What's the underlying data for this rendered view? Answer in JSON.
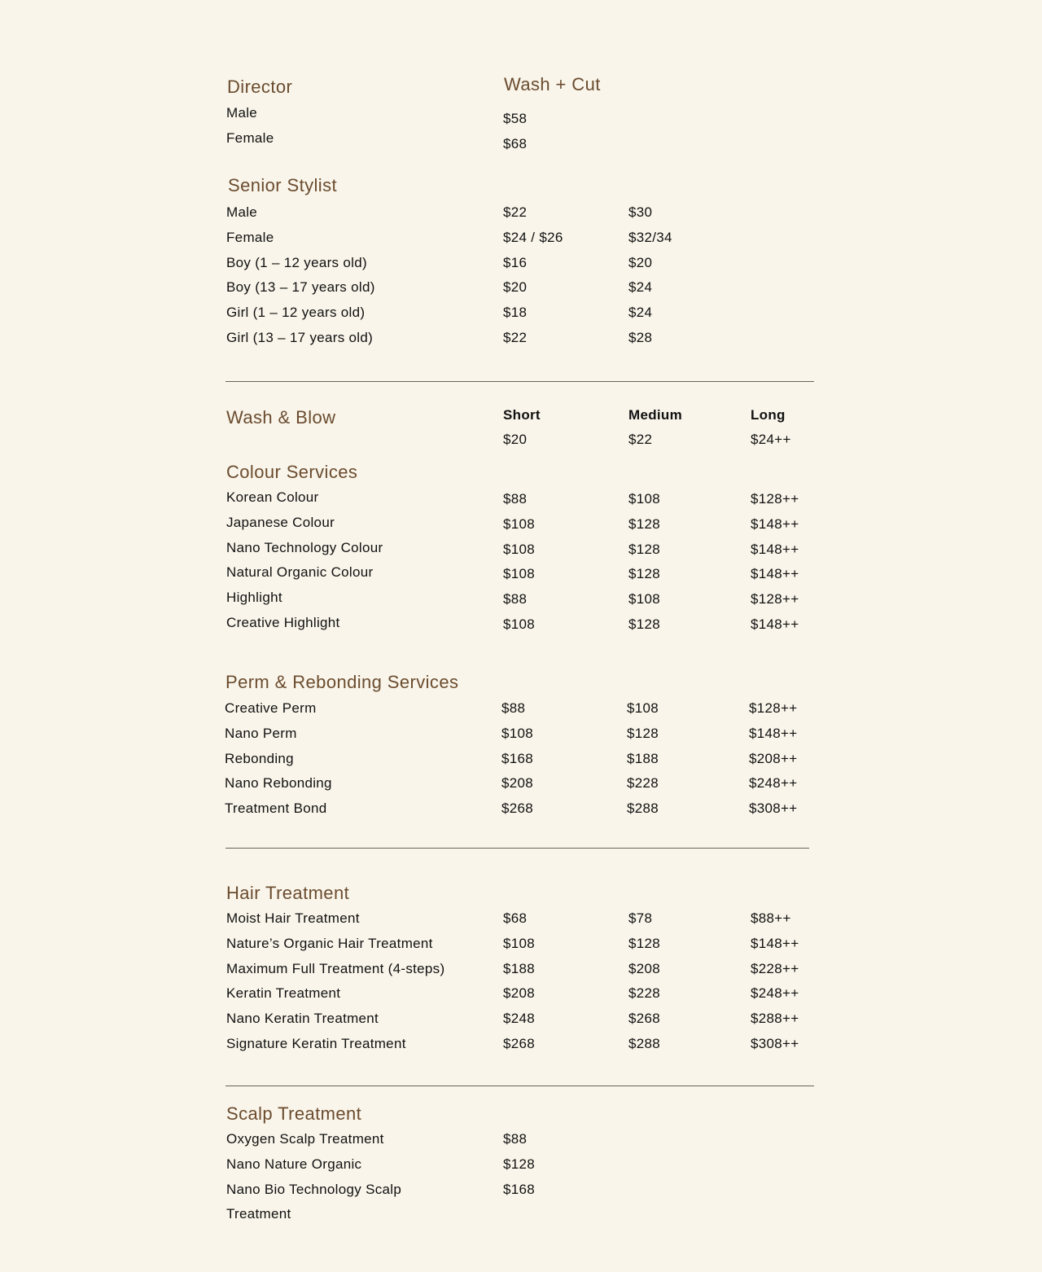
{
  "colors": {
    "background": "#f9f5ea",
    "heading": "#6b4c2f",
    "text": "#111111",
    "divider": "#6b6258"
  },
  "director": {
    "title": "Director",
    "column_header": "Wash + Cut",
    "rows": [
      [
        "Male",
        "$58"
      ],
      [
        "Female",
        "$68"
      ]
    ]
  },
  "senior_stylist": {
    "title": "Senior Stylist",
    "rows": [
      [
        "Male",
        "$22",
        "$30"
      ],
      [
        "Female",
        "$24 / $26",
        "$32/34"
      ],
      [
        "Boy (1 – 12 years old)",
        "$16",
        "$20"
      ],
      [
        "Boy (13 – 17 years old)",
        "$20",
        "$24"
      ],
      [
        "Girl (1 – 12 years old)",
        "$18",
        "$24"
      ],
      [
        "Girl (13 – 17 years old)",
        "$22",
        "$28"
      ]
    ]
  },
  "wash_blow": {
    "title": "Wash & Blow",
    "headers": [
      "Short",
      "Medium",
      "Long"
    ],
    "prices": [
      "$20",
      "$22",
      "$24++"
    ]
  },
  "colour": {
    "title": "Colour Services",
    "rows": [
      [
        "Korean Colour",
        "$88",
        "$108",
        "$128++"
      ],
      [
        "Japanese Colour",
        "$108",
        "$128",
        "$148++"
      ],
      [
        "Nano Technology Colour",
        "$108",
        "$128",
        "$148++"
      ],
      [
        "Natural Organic Colour",
        "$108",
        "$128",
        "$148++"
      ],
      [
        "Highlight",
        "$88",
        "$108",
        "$128++"
      ],
      [
        "Creative Highlight",
        "$108",
        "$128",
        "$148++"
      ]
    ]
  },
  "perm": {
    "title": "Perm & Rebonding Services",
    "rows": [
      [
        "Creative Perm",
        "$88",
        "$108",
        "$128++"
      ],
      [
        "Nano Perm",
        "$108",
        "$128",
        "$148++"
      ],
      [
        "Rebonding",
        "$168",
        "$188",
        "$208++"
      ],
      [
        "Nano Rebonding",
        "$208",
        "$228",
        "$248++"
      ],
      [
        "Treatment Bond",
        "$268",
        "$288",
        "$308++"
      ]
    ]
  },
  "hair": {
    "title": "Hair Treatment",
    "rows": [
      [
        "Moist Hair Treatment",
        "$68",
        "$78",
        "$88++"
      ],
      [
        "Nature’s Organic Hair Treatment",
        "$108",
        "$128",
        "$148++"
      ],
      [
        "Maximum Full Treatment (4-steps)",
        "$188",
        "$208",
        "$228++"
      ],
      [
        "Keratin Treatment",
        "$208",
        "$228",
        "$248++"
      ],
      [
        "Nano Keratin Treatment",
        "$248",
        "$268",
        "$288++"
      ],
      [
        "Signature Keratin Treatment",
        "$268",
        "$288",
        "$308++"
      ]
    ]
  },
  "scalp": {
    "title": "Scalp Treatment",
    "rows": [
      [
        "Oxygen Scalp Treatment",
        "$88"
      ],
      [
        "Nano Nature Organic",
        "$128"
      ],
      [
        "Nano Bio Technology Scalp",
        "$168"
      ],
      [
        "Treatment"
      ]
    ]
  }
}
